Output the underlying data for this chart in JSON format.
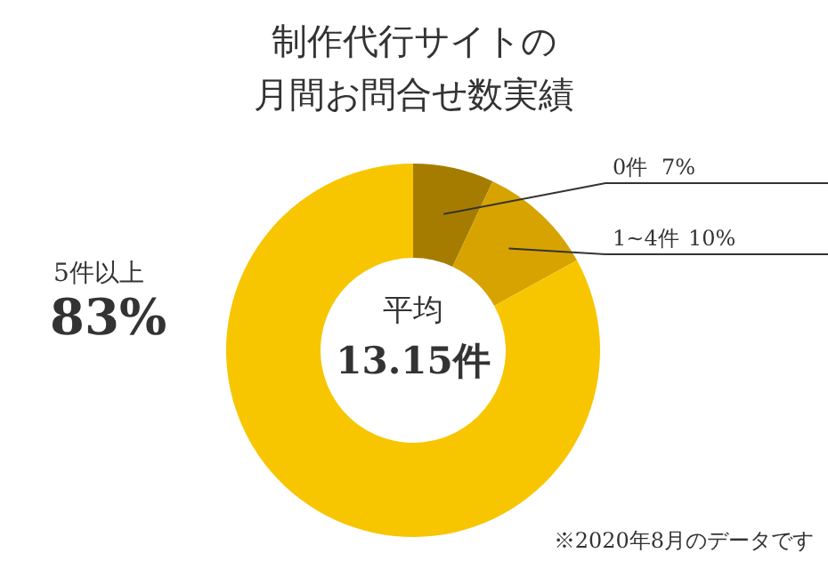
{
  "chart_data": {
    "type": "donut",
    "title": "制作代行サイトの月間お問合せ数実績",
    "categories": [
      "0件",
      "1~4件",
      "5件以上"
    ],
    "values": [
      7,
      10,
      83
    ],
    "value_labels": [
      "7%",
      "10%",
      "83%"
    ],
    "colors": [
      "#a67c00",
      "#d6a300",
      "#f7c600"
    ],
    "annotations": [
      "平均",
      "13.15件",
      "※2020年8月のデータです"
    ]
  }
}
